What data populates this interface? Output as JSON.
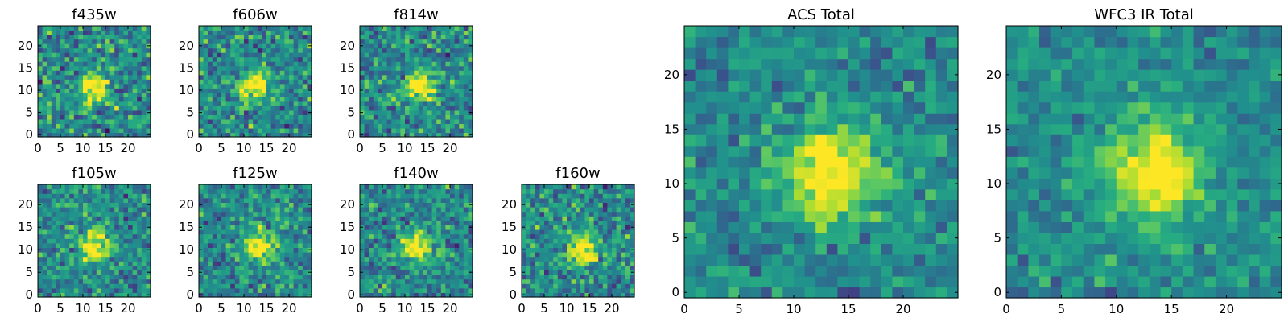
{
  "chart_data": [
    {
      "type": "heatmap",
      "title": "f435w",
      "xticks": [
        "0",
        "5",
        "10",
        "15",
        "20"
      ],
      "yticks": [
        "0",
        "5",
        "10",
        "15",
        "20"
      ],
      "xlim": [
        0,
        25
      ],
      "ylim": [
        0,
        25
      ],
      "grid": false,
      "colormap": "viridis",
      "peak": [
        12,
        11
      ],
      "noise": 0.55,
      "seed": 11
    },
    {
      "type": "heatmap",
      "title": "f606w",
      "xticks": [
        "0",
        "5",
        "10",
        "15",
        "20"
      ],
      "yticks": [
        "0",
        "5",
        "10",
        "15",
        "20"
      ],
      "xlim": [
        0,
        25
      ],
      "ylim": [
        0,
        25
      ],
      "grid": false,
      "colormap": "viridis",
      "peak": [
        12,
        11
      ],
      "noise": 0.5,
      "seed": 23
    },
    {
      "type": "heatmap",
      "title": "f814w",
      "xticks": [
        "0",
        "5",
        "10",
        "15",
        "20"
      ],
      "yticks": [
        "0",
        "5",
        "10",
        "15",
        "20"
      ],
      "xlim": [
        0,
        25
      ],
      "ylim": [
        0,
        25
      ],
      "grid": false,
      "colormap": "viridis",
      "peak": [
        13,
        11
      ],
      "noise": 0.5,
      "seed": 37
    },
    {
      "type": "heatmap",
      "title": "f105w",
      "xticks": [
        "0",
        "5",
        "10",
        "15",
        "20"
      ],
      "yticks": [
        "0",
        "5",
        "10",
        "15",
        "20"
      ],
      "xlim": [
        0,
        25
      ],
      "ylim": [
        0,
        25
      ],
      "grid": false,
      "colormap": "viridis",
      "peak": [
        12,
        11
      ],
      "noise": 0.45,
      "seed": 41
    },
    {
      "type": "heatmap",
      "title": "f125w",
      "xticks": [
        "0",
        "5",
        "10",
        "15",
        "20"
      ],
      "yticks": [
        "0",
        "5",
        "10",
        "15",
        "20"
      ],
      "xlim": [
        0,
        25
      ],
      "ylim": [
        0,
        25
      ],
      "grid": false,
      "colormap": "viridis",
      "peak": [
        13,
        11
      ],
      "noise": 0.45,
      "seed": 53
    },
    {
      "type": "heatmap",
      "title": "f140w",
      "xticks": [
        "0",
        "5",
        "10",
        "15",
        "20"
      ],
      "yticks": [
        "0",
        "5",
        "10",
        "15",
        "20"
      ],
      "xlim": [
        0,
        25
      ],
      "ylim": [
        0,
        25
      ],
      "grid": false,
      "colormap": "viridis",
      "peak": [
        12,
        11
      ],
      "noise": 0.45,
      "seed": 67
    },
    {
      "type": "heatmap",
      "title": "f160w",
      "xticks": [
        "0",
        "5",
        "10",
        "15",
        "20"
      ],
      "yticks": [
        "0",
        "5",
        "10",
        "15",
        "20"
      ],
      "xlim": [
        0,
        25
      ],
      "ylim": [
        0,
        25
      ],
      "grid": false,
      "colormap": "viridis",
      "peak": [
        13,
        10
      ],
      "noise": 0.5,
      "seed": 79
    },
    {
      "type": "heatmap",
      "title": "ACS Total",
      "xticks": [
        "0",
        "5",
        "10",
        "15",
        "20"
      ],
      "yticks": [
        "0",
        "5",
        "10",
        "15",
        "20"
      ],
      "xlim": [
        0,
        25
      ],
      "ylim": [
        0,
        25
      ],
      "grid": false,
      "colormap": "viridis",
      "peak": [
        13,
        11
      ],
      "noise": 0.35,
      "seed": 83
    },
    {
      "type": "heatmap",
      "title": "WFC3 IR Total",
      "xticks": [
        "0",
        "5",
        "10",
        "15",
        "20"
      ],
      "yticks": [
        "0",
        "5",
        "10",
        "15",
        "20"
      ],
      "xlim": [
        0,
        25
      ],
      "ylim": [
        0,
        25
      ],
      "grid": false,
      "colormap": "viridis",
      "peak": [
        13,
        11
      ],
      "noise": 0.3,
      "seed": 97
    }
  ]
}
